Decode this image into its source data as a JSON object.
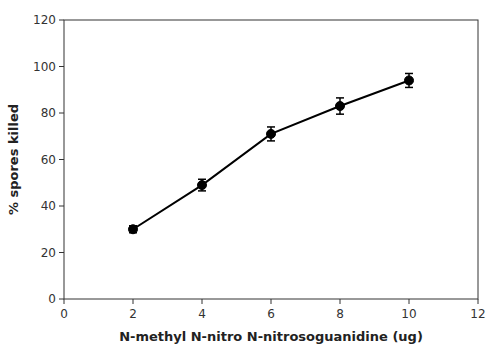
{
  "chart_data": {
    "type": "line",
    "x": [
      2,
      4,
      6,
      8,
      10
    ],
    "values": [
      30,
      49,
      71,
      83,
      94
    ],
    "yerr": [
      1.5,
      2.5,
      3.0,
      3.5,
      3.0
    ],
    "xlabel": "N-methyl N-nitro N-nitrosoguanidine  (ug)",
    "ylabel": "% spores killed",
    "xlim": [
      0,
      12
    ],
    "ylim": [
      0,
      120
    ],
    "xticks": [
      0,
      2,
      4,
      6,
      8,
      10,
      12
    ],
    "yticks": [
      0,
      20,
      40,
      60,
      80,
      100,
      120
    ],
    "color": "#000000",
    "marker": "o",
    "line_style": "solid",
    "grid": false
  }
}
